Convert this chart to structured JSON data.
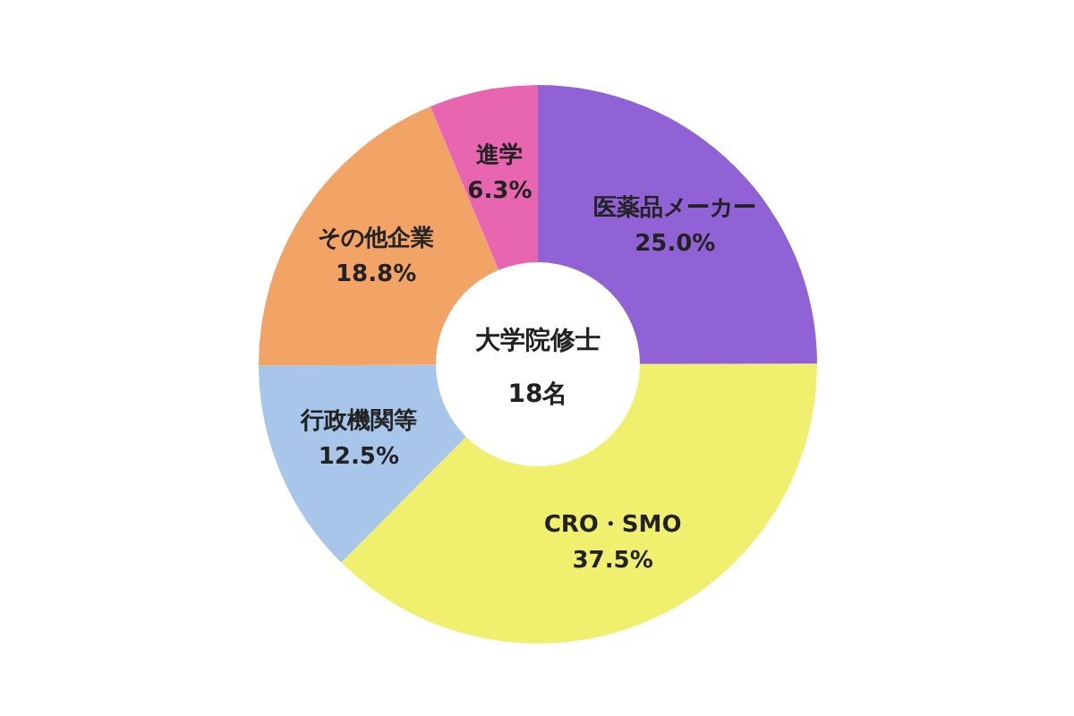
{
  "chart_data": {
    "type": "donut",
    "categories": [
      "医薬品メーカー",
      "CRO・SMO",
      "行政機関等",
      "その他企業",
      "進学"
    ],
    "values": [
      25.0,
      37.5,
      12.5,
      18.8,
      6.3
    ],
    "value_labels": [
      "25.0%",
      "37.5%",
      "12.5%",
      "18.8%",
      "6.3%"
    ],
    "colors": [
      "#9162d6",
      "#f0ef6e",
      "#a8c6ea",
      "#f2a467",
      "#e865b0"
    ],
    "annotations": [
      "大学院修士",
      "18名"
    ],
    "legend": false
  }
}
